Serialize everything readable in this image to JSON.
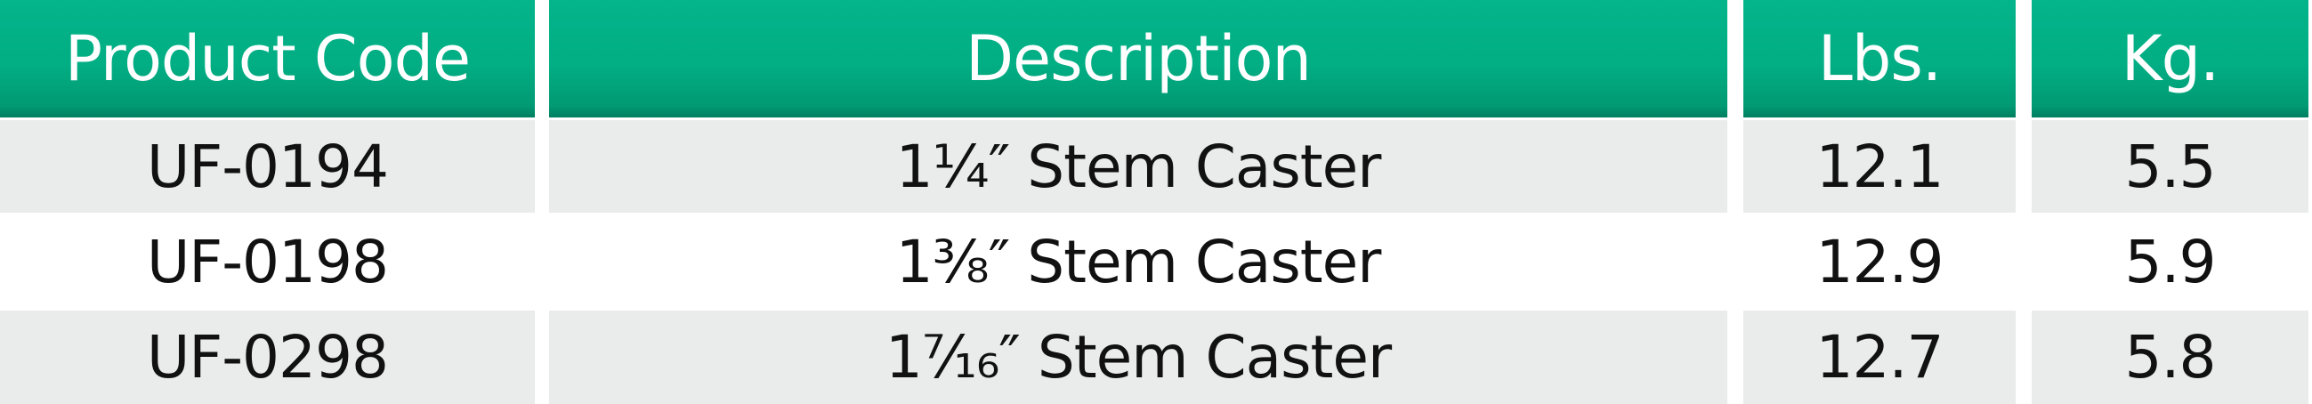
{
  "table": {
    "header": {
      "product_code": "Product Code",
      "description": "Description",
      "lbs": "Lbs.",
      "kg": "Kg."
    },
    "rows": [
      {
        "code": "UF-0194",
        "description": "1¼″ Stem Caster",
        "lbs": "12.1",
        "kg": "5.5"
      },
      {
        "code": "UF-0198",
        "description": "1⅜″ Stem Caster",
        "lbs": "12.9",
        "kg": "5.9"
      },
      {
        "code": "UF-0298",
        "description": "1⁷⁄₁₆″ Stem Caster",
        "lbs": "12.7",
        "kg": "5.8"
      }
    ]
  },
  "colors": {
    "header_green": "#02ae84",
    "row_shade": "#e9ecea",
    "header_text": "#ffffff",
    "body_text": "#111111"
  }
}
